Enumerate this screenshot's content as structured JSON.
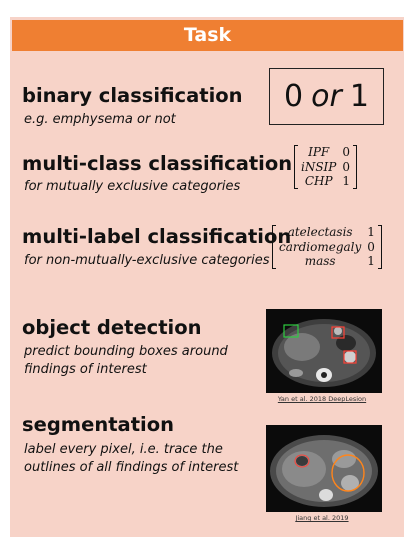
{
  "header": {
    "title": "Task"
  },
  "sections": {
    "binary": {
      "title": "binary classification",
      "desc": "e.g. emphysema or not",
      "example": {
        "left": "0",
        "or": "or",
        "right": "1"
      }
    },
    "multiclass": {
      "title": "multi-class classification",
      "desc": "for mutually exclusive categories",
      "rows": [
        {
          "label": "IPF",
          "value": "0"
        },
        {
          "label": "iNSIP",
          "value": "0"
        },
        {
          "label": "CHP",
          "value": "1"
        }
      ]
    },
    "multilabel": {
      "title": "multi-label classification",
      "desc": "for non-mutually-exclusive categories",
      "rows": [
        {
          "label": "atelectasis",
          "value": "1"
        },
        {
          "label": "cardiomegaly",
          "value": "0"
        },
        {
          "label": "mass",
          "value": "1"
        }
      ]
    },
    "detection": {
      "title": "object detection",
      "desc": "predict bounding boxes around findings of interest",
      "citation": "Yan et al. 2018 DeepLesion"
    },
    "segmentation": {
      "title": "segmentation",
      "desc": "label every pixel, i.e. trace the outlines of all findings of interest",
      "citation": "Jiang et al. 2019"
    }
  }
}
